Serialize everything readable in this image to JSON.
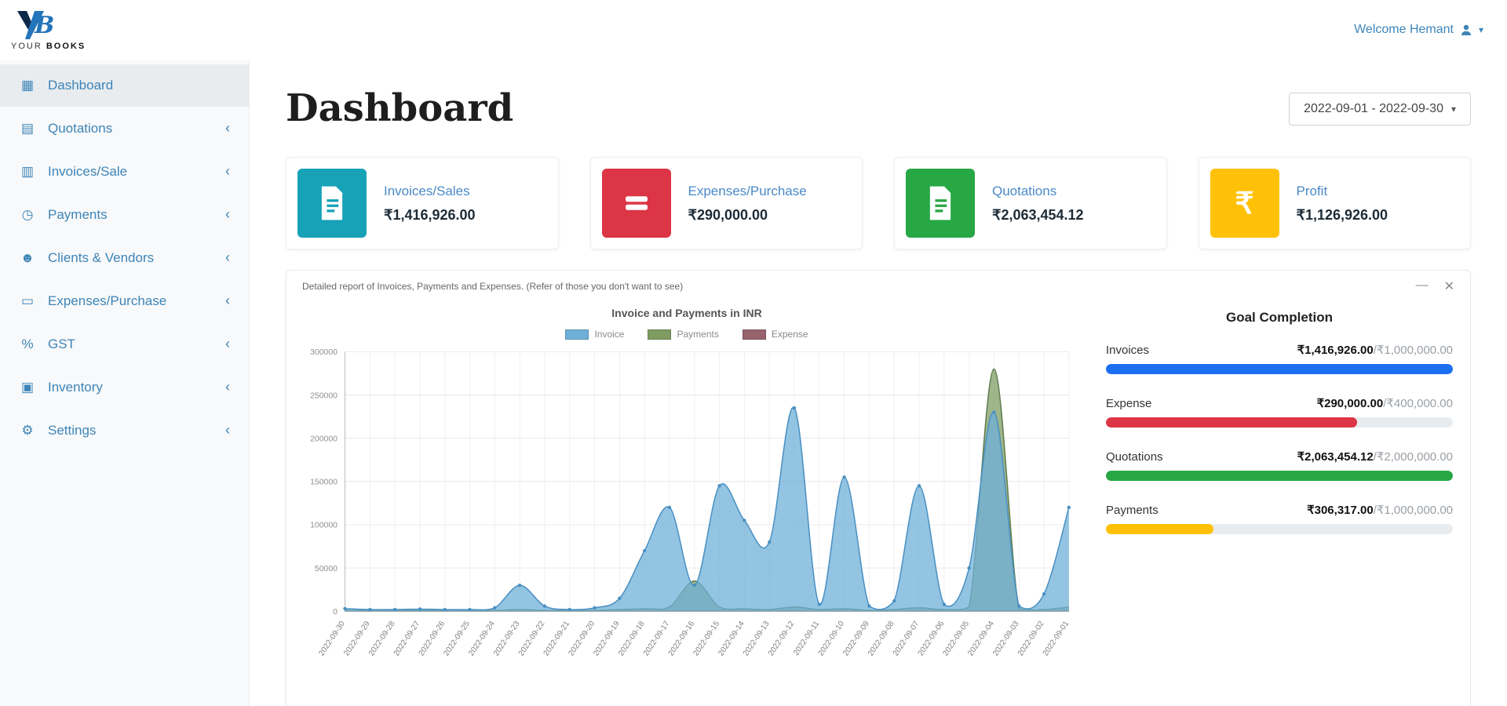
{
  "brand": {
    "your": "YOUR",
    "books": "BOOKS"
  },
  "topbar": {
    "welcome": "Welcome Hemant",
    "caret": "▾"
  },
  "sidebar": {
    "chevron": "‹",
    "items": [
      {
        "label": "Dashboard",
        "icon": "▦"
      },
      {
        "label": "Quotations",
        "icon": "▤"
      },
      {
        "label": "Invoices/Sale",
        "icon": "▥"
      },
      {
        "label": "Payments",
        "icon": "◷"
      },
      {
        "label": "Clients & Vendors",
        "icon": "☻"
      },
      {
        "label": "Expenses/Purchase",
        "icon": "▭"
      },
      {
        "label": "GST",
        "icon": "%"
      },
      {
        "label": "Inventory",
        "icon": "▣"
      },
      {
        "label": "Settings",
        "icon": "⚙"
      }
    ]
  },
  "page": {
    "title": "Dashboard",
    "date_range": "2022-09-01 - 2022-09-30"
  },
  "stat_cards": [
    {
      "label": "Invoices/Sales",
      "value": "₹1,416,926.00",
      "color": "#17a2b8"
    },
    {
      "label": "Expenses/Purchase",
      "value": "₹290,000.00",
      "color": "#dc3545"
    },
    {
      "label": "Quotations",
      "value": "₹2,063,454.12",
      "color": "#28a745"
    },
    {
      "label": "Profit",
      "value": "₹1,126,926.00",
      "color": "#ffc107",
      "rupee": "₹"
    }
  ],
  "report_panel": {
    "title": "Detailed report of Invoices, Payments and Expenses. (Refer of those you don't want to see)",
    "minimize": "—",
    "close": "✕"
  },
  "chart_data": {
    "type": "area",
    "title": "Invoice and Payments in INR",
    "legend_position": "top",
    "grid": true,
    "ylim": [
      0,
      300000
    ],
    "ytick": 50000,
    "x": [
      "2022-09-30",
      "2022-09-29",
      "2022-09-28",
      "2022-09-27",
      "2022-09-26",
      "2022-09-25",
      "2022-09-24",
      "2022-09-23",
      "2022-09-22",
      "2022-09-21",
      "2022-09-20",
      "2022-09-19",
      "2022-09-18",
      "2022-09-17",
      "2022-09-16",
      "2022-09-15",
      "2022-09-14",
      "2022-09-13",
      "2022-09-12",
      "2022-09-11",
      "2022-09-10",
      "2022-09-09",
      "2022-09-08",
      "2022-09-07",
      "2022-09-06",
      "2022-09-05",
      "2022-09-04",
      "2022-09-03",
      "2022-09-02",
      "2022-09-01"
    ],
    "series": [
      {
        "name": "Invoice",
        "color": "#6fb0d8",
        "stroke": "#4a90c2",
        "values": [
          3000,
          2000,
          2000,
          2500,
          2000,
          2000,
          4000,
          30000,
          6000,
          2000,
          4000,
          15000,
          70000,
          120000,
          30000,
          145000,
          105000,
          80000,
          235000,
          8000,
          155000,
          6000,
          12000,
          145000,
          8000,
          50000,
          230000,
          6000,
          20000,
          120000
        ]
      },
      {
        "name": "Payments",
        "color": "#7f9c63",
        "stroke": "#5f7d4f",
        "values": [
          1000,
          1000,
          1000,
          1000,
          1000,
          1000,
          1000,
          2000,
          1000,
          1000,
          1000,
          2000,
          3000,
          5000,
          35000,
          5000,
          3000,
          2000,
          5000,
          2000,
          3000,
          1000,
          2000,
          4000,
          2000,
          5000,
          280000,
          3000,
          2000,
          5000
        ]
      },
      {
        "name": "Expense",
        "color": "#97646e",
        "stroke": "#7a4b55",
        "values": [
          500,
          500,
          500,
          500,
          500,
          500,
          500,
          500,
          500,
          500,
          500,
          500,
          500,
          500,
          500,
          500,
          500,
          500,
          500,
          500,
          500,
          500,
          500,
          500,
          500,
          500,
          500,
          500,
          500,
          500
        ]
      }
    ]
  },
  "goals": {
    "title": "Goal Completion",
    "items": [
      {
        "label": "Invoices",
        "value": "₹1,416,926.00",
        "target": "/₹1,000,000.00",
        "pct": 100,
        "color": "#1d6ff2"
      },
      {
        "label": "Expense",
        "value": "₹290,000.00",
        "target": "/₹400,000.00",
        "pct": 72.5,
        "color": "#dc3545"
      },
      {
        "label": "Quotations",
        "value": "₹2,063,454.12",
        "target": "/₹2,000,000.00",
        "pct": 100,
        "color": "#28a745"
      },
      {
        "label": "Payments",
        "value": "₹306,317.00",
        "target": "/₹1,000,000.00",
        "pct": 31,
        "color": "#ffc107"
      }
    ]
  }
}
